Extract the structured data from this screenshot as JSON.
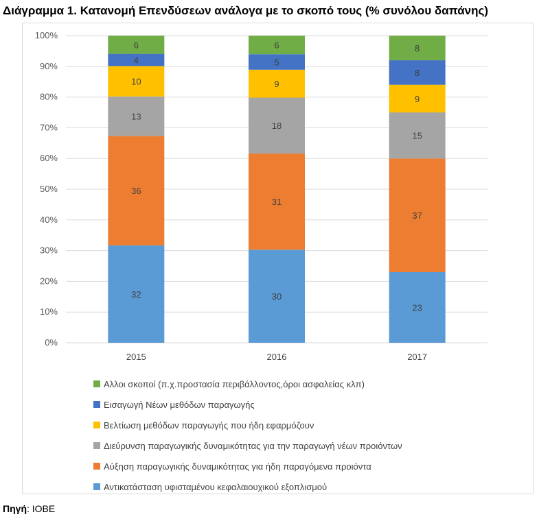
{
  "title": "Διάγραμμα 1. Κατανομή Επενδύσεων ανάλογα με το σκοπό τους (% συνόλου δαπάνης)",
  "source": {
    "label": "Πηγή",
    "sep": ": ",
    "value": "IOBE"
  },
  "chart_data": {
    "type": "bar",
    "stacked": true,
    "percent_axis": true,
    "categories": [
      "2015",
      "2016",
      "2017"
    ],
    "y_ticks": [
      "0%",
      "10%",
      "20%",
      "30%",
      "40%",
      "50%",
      "60%",
      "70%",
      "80%",
      "90%",
      "100%"
    ],
    "ylim": [
      0,
      100
    ],
    "grid": true,
    "legend_position": "bottom",
    "series": [
      {
        "name": "Αντικατάσταση υφισταμένου κεφαλαιουχικού εξοπλισμού",
        "color": "#5b9bd5",
        "values": [
          32,
          30,
          23
        ]
      },
      {
        "name": "Αύξηση παραγωγικής δυναμικότητας για ήδη παραγόμενα προιόντα",
        "color": "#ed7d31",
        "values": [
          36,
          31,
          37
        ]
      },
      {
        "name": "Διεύρυνση παραγωγικής δυναμικότητας για την παραγωγή νέων προιόντων",
        "color": "#a5a5a5",
        "values": [
          13,
          18,
          15
        ]
      },
      {
        "name": "Βελτίωση μεθόδων παραγωγής που ήδη εφαρμόζουν",
        "color": "#ffc000",
        "values": [
          10,
          9,
          9
        ]
      },
      {
        "name": "Εισαγωγή  Νέων μεθόδων παραγωγής",
        "color": "#4472c4",
        "values": [
          4,
          5,
          8
        ]
      },
      {
        "name": "Αλλοι σκοποί (π.χ.προστασία περιβάλλοντος,όροι ασφαλείας κλπ)",
        "color": "#70ad47",
        "values": [
          6,
          6,
          8
        ]
      }
    ]
  }
}
